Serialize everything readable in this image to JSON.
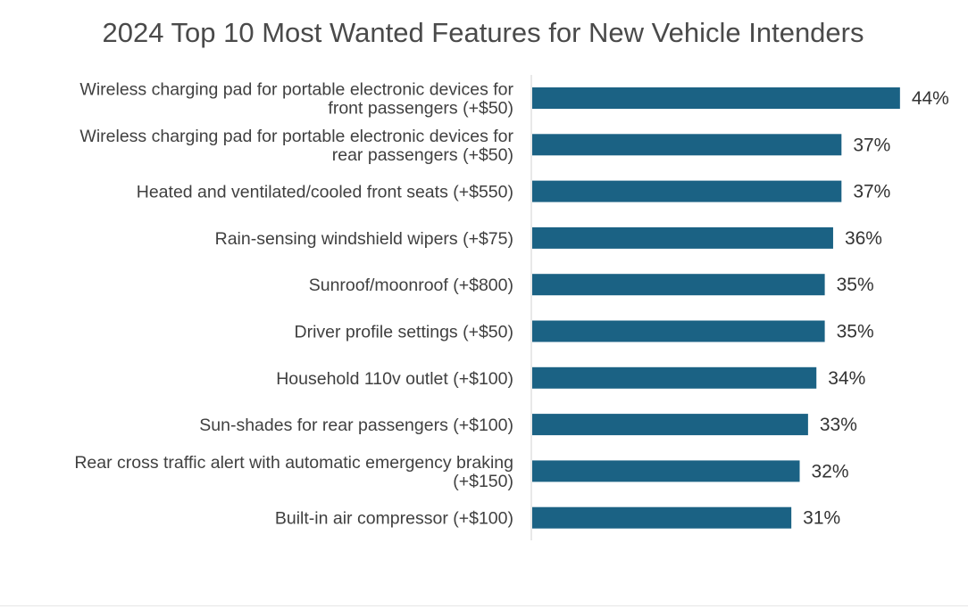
{
  "chart_data": {
    "type": "bar",
    "orientation": "horizontal",
    "title": "2024 Top 10 Most Wanted Features for New Vehicle Intenders",
    "categories": [
      [
        "Wireless charging pad for portable electronic devices for",
        "front passengers (+$50)"
      ],
      [
        "Wireless charging pad for portable electronic devices for",
        "rear passengers (+$50)"
      ],
      [
        "Heated and ventilated/cooled front seats (+$550)"
      ],
      [
        "Rain-sensing windshield wipers (+$75)"
      ],
      [
        "Sunroof/moonroof (+$800)"
      ],
      [
        "Driver profile settings (+$50)"
      ],
      [
        "Household 110v outlet (+$100)"
      ],
      [
        "Sun-shades for rear passengers (+$100)"
      ],
      [
        "Rear cross traffic alert with automatic emergency braking",
        "(+$150)"
      ],
      [
        "Built-in air compressor (+$100)"
      ]
    ],
    "values": [
      44,
      37,
      37,
      36,
      35,
      35,
      34,
      33,
      32,
      31
    ],
    "value_labels": [
      "44%",
      "37%",
      "37%",
      "36%",
      "35%",
      "35%",
      "34%",
      "33%",
      "32%",
      "31%"
    ],
    "units": "%",
    "legend": "none",
    "grid": false,
    "bar_color": "#1b6284",
    "axis_color": "#d0d0d0"
  }
}
